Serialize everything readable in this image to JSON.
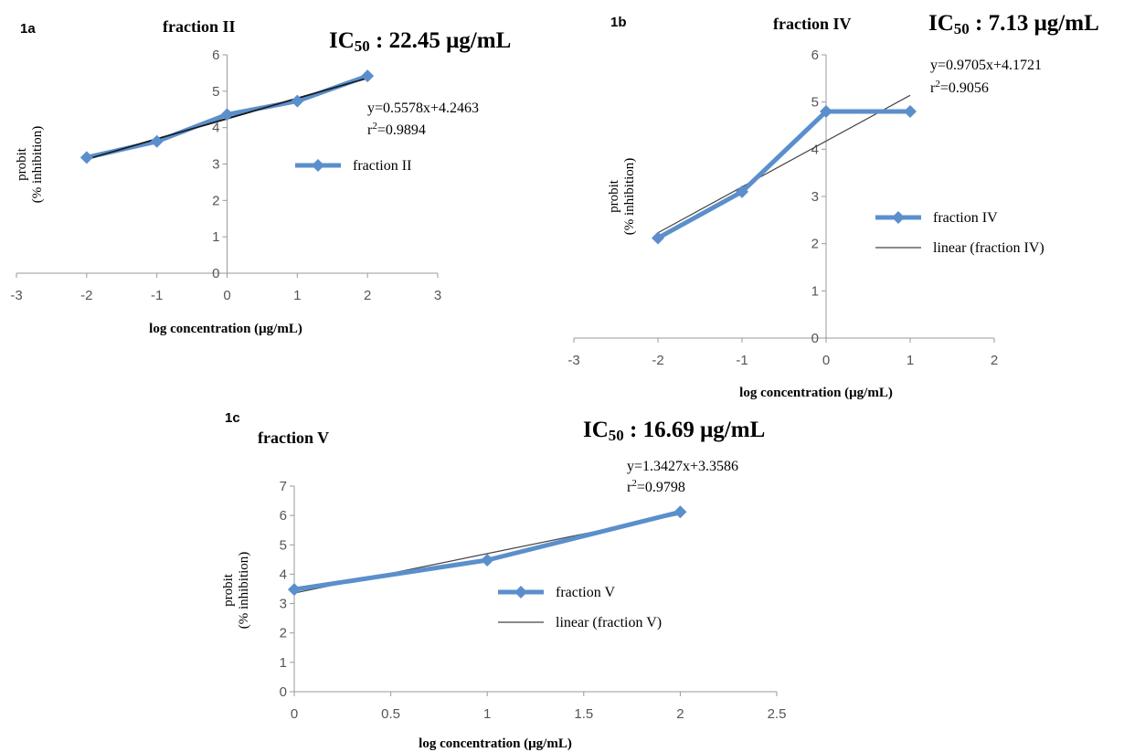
{
  "chart_data": [
    {
      "id": "1a",
      "type": "line",
      "panel_label": "1a",
      "title": "fraction II",
      "ic50_main": "IC",
      "ic50_sub": "50",
      "ic50_rest": " : 22.45 μg/mL",
      "xlabel": "log concentration (μg/mL)",
      "ylabel_line1": "probit",
      "ylabel_line2": "(% inhibition)",
      "xlim": [
        -3,
        3
      ],
      "ylim": [
        0,
        6
      ],
      "xticks": [
        -3,
        -2,
        -1,
        0,
        1,
        2,
        3
      ],
      "yticks": [
        0,
        1,
        2,
        3,
        4,
        5,
        6
      ],
      "series": [
        {
          "name": "fraction II",
          "x": [
            -2,
            -1,
            0,
            1,
            2
          ],
          "y": [
            3.18,
            3.62,
            4.36,
            4.73,
            5.42
          ],
          "color": "#5b8fcc"
        }
      ],
      "trendline": {
        "slope": 0.5578,
        "intercept": 4.2463,
        "x_range": [
          -2,
          2
        ],
        "color": "#1a1a1a",
        "legend": false
      },
      "equation": "y=0.5578x+4.2463",
      "r2_main": "r",
      "r2_sup": "2",
      "r2_rest": "=0.9894"
    },
    {
      "id": "1b",
      "type": "line",
      "panel_label": "1b",
      "title": "fraction IV",
      "ic50_main": "IC",
      "ic50_sub": "50",
      "ic50_rest": " : 7.13 μg/mL",
      "xlabel": "log concentration (μg/mL)",
      "ylabel_line1": "probit",
      "ylabel_line2": "(% inhibition)",
      "xlim": [
        -3,
        2
      ],
      "ylim": [
        0,
        6
      ],
      "xticks": [
        -3,
        -2,
        -1,
        0,
        1,
        2
      ],
      "yticks": [
        0,
        1,
        2,
        3,
        4,
        5,
        6
      ],
      "series": [
        {
          "name": "fraction IV",
          "x": [
            -2,
            -1,
            0,
            1
          ],
          "y": [
            2.12,
            3.1,
            4.8,
            4.8
          ],
          "color": "#5b8fcc"
        }
      ],
      "trendline": {
        "slope": 0.9705,
        "intercept": 4.1721,
        "x_range": [
          -2,
          1
        ],
        "color": "#444444",
        "legend": true,
        "name": "linear (fraction IV)"
      },
      "equation": "y=0.9705x+4.1721",
      "r2_main": "r",
      "r2_sup": "2",
      "r2_rest": "=0.9056"
    },
    {
      "id": "1c",
      "type": "line",
      "panel_label": "1c",
      "title": "fraction V",
      "ic50_main": "IC",
      "ic50_sub": "50",
      "ic50_rest": " : 16.69 μg/mL",
      "xlabel": "log concentration (μg/mL)",
      "ylabel_line1": "probit",
      "ylabel_line2": "(% inhibition)",
      "xlim": [
        0,
        2.5
      ],
      "ylim": [
        0,
        7
      ],
      "xticks": [
        0,
        0.5,
        1,
        1.5,
        2,
        2.5
      ],
      "yticks": [
        0,
        1,
        2,
        3,
        4,
        5,
        6,
        7
      ],
      "series": [
        {
          "name": "fraction V",
          "x": [
            0,
            1,
            2
          ],
          "y": [
            3.48,
            4.48,
            6.12
          ],
          "color": "#5b8fcc"
        }
      ],
      "trendline": {
        "slope": 1.3427,
        "intercept": 3.3586,
        "x_range": [
          0,
          2
        ],
        "color": "#444444",
        "legend": true,
        "name": "linear (fraction V)"
      },
      "equation": "y=1.3427x+3.3586",
      "r2_main": "r",
      "r2_sup": "2",
      "r2_rest": "=0.9798"
    }
  ]
}
